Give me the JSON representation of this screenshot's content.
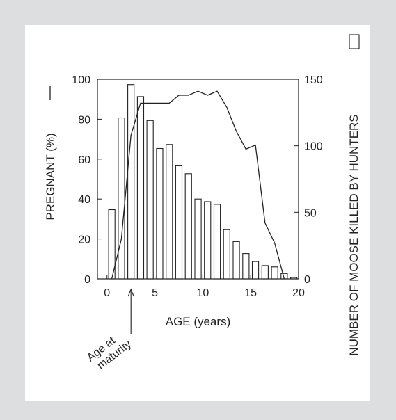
{
  "chart_data": {
    "type": "bar",
    "combo_line": true,
    "x": [
      0,
      1,
      2,
      3,
      4,
      5,
      6,
      7,
      8,
      9,
      10,
      11,
      12,
      13,
      14,
      15,
      16,
      17,
      18,
      19
    ],
    "bar_values": [
      52,
      121,
      146,
      137,
      119,
      98,
      101,
      85,
      79,
      60,
      58,
      56,
      37,
      28,
      19,
      13,
      10,
      9,
      4,
      1
    ],
    "bar_legend": "NUMBER OF MOOSE KILLED BY HUNTERS",
    "line_points": [
      [
        0.5,
        0
      ],
      [
        1.5,
        20
      ],
      [
        2.5,
        72
      ],
      [
        3.5,
        88
      ],
      [
        4.5,
        88
      ],
      [
        5.5,
        88
      ],
      [
        6.5,
        88
      ],
      [
        7.5,
        92
      ],
      [
        8.5,
        92
      ],
      [
        9.5,
        94
      ],
      [
        10.5,
        92
      ],
      [
        11.5,
        94
      ],
      [
        12.5,
        86
      ],
      [
        13.5,
        74
      ],
      [
        14.5,
        65
      ],
      [
        15.5,
        67
      ],
      [
        16.5,
        28
      ],
      [
        17.5,
        18
      ],
      [
        18.5,
        0
      ]
    ],
    "line_legend": "PREGNANT (%)",
    "xlabel": "AGE (years)",
    "ylabel_left": "PREGNANT (%)",
    "ylabel_right": "NUMBER OF MOOSE KILLED BY HUNTERS",
    "x_ticks": [
      0,
      5,
      10,
      15,
      20
    ],
    "y_left_ticks": [
      0,
      20,
      40,
      60,
      80,
      100
    ],
    "y_right_ticks": [
      0,
      50,
      100,
      150
    ],
    "xlim": [
      -1,
      20
    ],
    "ylim_left": [
      0,
      100
    ],
    "ylim_right": [
      0,
      150
    ],
    "annotation": {
      "line1": "Age at",
      "line2": "maturity",
      "x": 2
    },
    "colors": {
      "bar_fill": "#ffffff",
      "stroke": "#222222",
      "background": "#dcdee0",
      "panel": "#ffffff"
    }
  }
}
